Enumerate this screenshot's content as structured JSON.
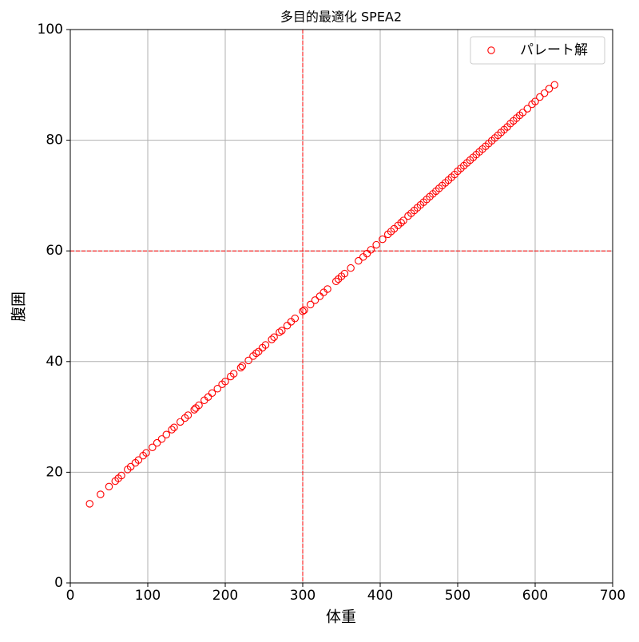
{
  "chart_data": {
    "type": "scatter",
    "title": "多目的最適化 SPEA2",
    "x_label": "体重",
    "y_label": "腹囲",
    "xlim": [
      0,
      700
    ],
    "xticks": [
      0,
      100,
      200,
      300,
      400,
      500,
      600,
      700
    ],
    "ylim": [
      0,
      100
    ],
    "yticks": [
      0,
      20,
      40,
      60,
      80,
      100
    ],
    "grid": true,
    "legend": "upper right",
    "vlines": [
      300
    ],
    "hlines": [
      60
    ],
    "line_color": "#ff0000",
    "series": [
      {
        "name": "パレート解",
        "color": "#ff0000",
        "x": [
          25,
          39,
          50,
          58,
          62,
          66,
          74,
          78,
          84,
          88,
          94,
          98,
          106,
          112,
          118,
          124,
          131,
          134,
          142,
          148,
          152,
          160,
          162,
          166,
          173,
          178,
          183,
          190,
          196,
          200,
          207,
          211,
          220,
          222,
          230,
          236,
          240,
          243,
          248,
          252,
          260,
          263,
          270,
          273,
          280,
          285,
          290,
          300,
          302,
          310,
          316,
          322,
          327,
          332,
          343,
          346,
          350,
          354,
          362,
          372,
          378,
          383,
          388,
          395,
          403,
          410,
          414,
          418,
          423,
          427,
          430,
          436,
          440,
          444,
          448,
          452,
          456,
          460,
          464,
          468,
          472,
          476,
          480,
          484,
          488,
          492,
          496,
          500,
          504,
          508,
          512,
          516,
          520,
          524,
          528,
          532,
          536,
          540,
          544,
          548,
          552,
          556,
          560,
          564,
          568,
          572,
          576,
          580,
          584,
          590,
          596,
          600,
          606,
          612,
          618,
          625
        ],
        "values": [
          14.3,
          16.0,
          17.4,
          18.4,
          18.9,
          19.4,
          20.5,
          21.0,
          21.7,
          22.2,
          23.0,
          23.5,
          24.5,
          25.3,
          26.0,
          26.8,
          27.7,
          28.1,
          29.1,
          29.8,
          30.3,
          31.3,
          31.6,
          32.1,
          33.0,
          33.6,
          34.3,
          35.1,
          35.9,
          36.4,
          37.3,
          37.8,
          38.9,
          39.2,
          40.2,
          41.0,
          41.5,
          41.8,
          42.5,
          43.0,
          44.0,
          44.4,
          45.3,
          45.6,
          46.5,
          47.2,
          47.8,
          49.1,
          49.3,
          50.3,
          51.1,
          51.8,
          52.5,
          53.1,
          54.5,
          54.9,
          55.4,
          55.9,
          56.9,
          58.2,
          58.9,
          59.5,
          60.2,
          61.1,
          62.1,
          63.0,
          63.5,
          64.0,
          64.6,
          65.1,
          65.5,
          66.3,
          66.8,
          67.3,
          67.8,
          68.3,
          68.8,
          69.3,
          69.8,
          70.3,
          70.8,
          71.3,
          71.8,
          72.3,
          72.8,
          73.3,
          73.8,
          74.4,
          74.9,
          75.4,
          75.9,
          76.4,
          76.9,
          77.4,
          77.9,
          78.4,
          78.9,
          79.4,
          79.9,
          80.4,
          80.9,
          81.4,
          81.9,
          82.4,
          83.0,
          83.5,
          84.0,
          84.5,
          85.0,
          85.7,
          86.5,
          87.0,
          87.8,
          88.5,
          89.3,
          90.0
        ]
      }
    ]
  }
}
